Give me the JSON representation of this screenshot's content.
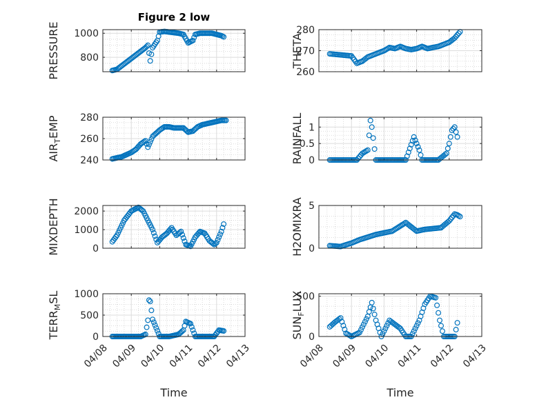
{
  "figure": {
    "title": "Figure 2 low",
    "marker_color": "#0072BD"
  },
  "chart_data": [
    {
      "type": "scatter",
      "title": "Figure 2 low",
      "ylabel": "PRESSURE",
      "ylabel_parts": [
        "PRESSURE"
      ],
      "xlim": [
        "04/08",
        "04/13"
      ],
      "ylim": [
        680,
        1030
      ],
      "yticks": [
        800,
        1000
      ],
      "xtick_labels_shown": false,
      "x": [
        "04/08 08:00",
        "04/08 12:00",
        "04/08 16:00",
        "04/08 20:00",
        "04/09 00:00",
        "04/09 04:00",
        "04/09 08:00",
        "04/09 12:00",
        "04/09 14:00",
        "04/09 16:00",
        "04/09 18:00",
        "04/09 22:00",
        "04/10 00:00",
        "04/10 04:00",
        "04/10 08:00",
        "04/10 12:00",
        "04/10 16:00",
        "04/10 20:00",
        "04/11 00:00",
        "04/11 04:00",
        "04/11 06:00",
        "04/11 10:00",
        "04/11 14:00",
        "04/11 20:00",
        "04/12 00:00",
        "04/12 04:00",
        "04/12 06:00"
      ],
      "values": [
        690,
        700,
        730,
        760,
        790,
        820,
        850,
        880,
        900,
        770,
        880,
        940,
        1010,
        1015,
        1010,
        1005,
        1000,
        990,
        920,
        940,
        990,
        1000,
        1000,
        1000,
        990,
        980,
        970
      ]
    },
    {
      "type": "scatter",
      "title": "",
      "ylabel": "THETA",
      "ylabel_parts": [
        "THETA"
      ],
      "xlim": [
        "04/08",
        "04/13"
      ],
      "ylim": [
        260,
        280
      ],
      "yticks": [
        260,
        270,
        280
      ],
      "xtick_labels_shown": false,
      "x": [
        "04/08 08:00",
        "04/08 16:00",
        "04/09 00:00",
        "04/09 04:00",
        "04/09 08:00",
        "04/09 12:00",
        "04/09 16:00",
        "04/10 00:00",
        "04/10 04:00",
        "04/10 08:00",
        "04/10 12:00",
        "04/10 16:00",
        "04/10 20:00",
        "04/11 00:00",
        "04/11 04:00",
        "04/11 08:00",
        "04/11 12:00",
        "04/11 16:00",
        "04/11 20:00",
        "04/12 00:00",
        "04/12 04:00",
        "04/12 08:00"
      ],
      "values": [
        268.5,
        268,
        267.5,
        264,
        265,
        267,
        268,
        270,
        271.5,
        271,
        272,
        271,
        270.5,
        271,
        272,
        271,
        271.5,
        272,
        273,
        274,
        276,
        279
      ]
    },
    {
      "type": "scatter",
      "title": "",
      "ylabel": "AIR_TEMP",
      "ylabel_parts": [
        "AIR",
        "T",
        "EMP"
      ],
      "xlim": [
        "04/08",
        "04/13"
      ],
      "ylim": [
        240,
        280
      ],
      "yticks": [
        240,
        260,
        280
      ],
      "xtick_labels_shown": false,
      "x": [
        "04/08 08:00",
        "04/08 16:00",
        "04/09 00:00",
        "04/09 04:00",
        "04/09 08:00",
        "04/09 12:00",
        "04/09 14:00",
        "04/09 18:00",
        "04/10 00:00",
        "04/10 04:00",
        "04/10 08:00",
        "04/10 12:00",
        "04/10 16:00",
        "04/10 20:00",
        "04/11 00:00",
        "04/11 04:00",
        "04/11 08:00",
        "04/11 12:00",
        "04/11 16:00",
        "04/11 20:00",
        "04/12 00:00",
        "04/12 04:00",
        "04/12 08:00"
      ],
      "values": [
        241,
        243,
        247,
        250,
        255,
        258,
        252,
        262,
        268,
        271,
        271,
        270,
        270,
        270,
        266,
        267,
        271,
        273,
        274,
        275,
        276,
        277,
        277
      ]
    },
    {
      "type": "scatter",
      "title": "",
      "ylabel": "RAINFALL",
      "ylabel_parts": [
        "RAINFALL"
      ],
      "xlim": [
        "04/08",
        "04/13"
      ],
      "ylim": [
        0,
        1.3
      ],
      "yticks": [
        0,
        0.5,
        1
      ],
      "xtick_labels_shown": false,
      "x": [
        "04/08 08:00",
        "04/08 16:00",
        "04/09 00:00",
        "04/09 04:00",
        "04/09 08:00",
        "04/09 12:00",
        "04/09 14:00",
        "04/09 15:00",
        "04/09 18:00",
        "04/10 00:00",
        "04/10 08:00",
        "04/10 16:00",
        "04/10 22:00",
        "04/11 00:00",
        "04/11 02:00",
        "04/11 04:00",
        "04/11 08:00",
        "04/11 16:00",
        "04/11 22:00",
        "04/12 00:00",
        "04/12 02:00",
        "04/12 04:00",
        "04/12 06:00"
      ],
      "values": [
        0,
        0,
        0,
        0,
        0.2,
        0.3,
        1.2,
        1.0,
        0,
        0,
        0,
        0,
        0.7,
        0.5,
        0.3,
        0,
        0,
        0,
        0.2,
        0.5,
        0.9,
        1.0,
        0.7
      ]
    },
    {
      "type": "scatter",
      "title": "",
      "ylabel": "MIXDEPTH",
      "ylabel_parts": [
        "MIXDEPTH"
      ],
      "xlim": [
        "04/08",
        "04/13"
      ],
      "ylim": [
        0,
        2300
      ],
      "yticks": [
        0,
        1000,
        2000
      ],
      "xtick_labels_shown": false,
      "x": [
        "04/08 08:00",
        "04/08 12:00",
        "04/08 18:00",
        "04/09 00:00",
        "04/09 06:00",
        "04/09 10:00",
        "04/09 14:00",
        "04/09 18:00",
        "04/09 22:00",
        "04/10 02:00",
        "04/10 06:00",
        "04/10 10:00",
        "04/10 14:00",
        "04/10 18:00",
        "04/10 22:00",
        "04/11 02:00",
        "04/11 06:00",
        "04/11 10:00",
        "04/11 14:00",
        "04/11 18:00",
        "04/11 22:00",
        "04/12 00:00",
        "04/12 04:00",
        "04/12 06:00"
      ],
      "values": [
        350,
        700,
        1500,
        2000,
        2200,
        2000,
        1500,
        1000,
        300,
        600,
        800,
        1100,
        700,
        900,
        200,
        100,
        600,
        900,
        800,
        400,
        200,
        300,
        900,
        1300
      ]
    },
    {
      "type": "scatter",
      "title": "",
      "ylabel": "H2OMIXRA",
      "ylabel_parts": [
        "H2OMIXRA"
      ],
      "xlim": [
        "04/08",
        "04/13"
      ],
      "ylim": [
        0,
        5
      ],
      "yticks": [
        0,
        5
      ],
      "xtick_labels_shown": false,
      "x": [
        "04/08 08:00",
        "04/08 16:00",
        "04/09 00:00",
        "04/09 06:00",
        "04/09 12:00",
        "04/09 18:00",
        "04/10 00:00",
        "04/10 06:00",
        "04/10 12:00",
        "04/10 16:00",
        "04/10 20:00",
        "04/11 00:00",
        "04/11 06:00",
        "04/11 12:00",
        "04/11 18:00",
        "04/12 00:00",
        "04/12 04:00",
        "04/12 06:00",
        "04/12 08:00"
      ],
      "values": [
        0.3,
        0.2,
        0.6,
        1.0,
        1.3,
        1.6,
        1.8,
        2.0,
        2.6,
        3.0,
        2.5,
        2.0,
        2.2,
        2.3,
        2.4,
        3.2,
        4.0,
        3.9,
        3.7
      ]
    },
    {
      "type": "scatter",
      "title": "",
      "ylabel": "TERR_MSL",
      "ylabel_parts": [
        "TERR",
        "M",
        "SL"
      ],
      "xlim": [
        "04/08",
        "04/13"
      ],
      "ylim": [
        0,
        1000
      ],
      "yticks": [
        0,
        500,
        1000
      ],
      "xtick_labels": [
        "04/08",
        "04/09",
        "04/10",
        "04/11",
        "04/12",
        "04/13"
      ],
      "xlabel": "Time",
      "x": [
        "04/08 08:00",
        "04/08 16:00",
        "04/09 00:00",
        "04/09 08:00",
        "04/09 12:00",
        "04/09 14:00",
        "04/09 15:00",
        "04/09 16:00",
        "04/09 18:00",
        "04/10 00:00",
        "04/10 08:00",
        "04/10 16:00",
        "04/10 20:00",
        "04/10 22:00",
        "04/11 02:00",
        "04/11 06:00",
        "04/11 12:00",
        "04/11 18:00",
        "04/11 22:00",
        "04/12 02:00",
        "04/12 06:00"
      ],
      "values": [
        0,
        0,
        0,
        0,
        50,
        380,
        850,
        820,
        400,
        0,
        0,
        50,
        150,
        350,
        300,
        0,
        0,
        0,
        0,
        150,
        130
      ]
    },
    {
      "type": "scatter",
      "title": "",
      "ylabel": "SUN_FLUX",
      "ylabel_parts": [
        "SUN",
        "F",
        "LUX"
      ],
      "xlim": [
        "04/08",
        "04/13"
      ],
      "ylim": [
        0,
        530
      ],
      "yticks": [
        0,
        500
      ],
      "xtick_labels": [
        "04/08",
        "04/09",
        "04/10",
        "04/11",
        "04/12",
        "04/13"
      ],
      "xlabel": "Time",
      "x": [
        "04/08 08:00",
        "04/08 12:00",
        "04/08 16:00",
        "04/08 20:00",
        "04/09 00:00",
        "04/09 06:00",
        "04/09 12:00",
        "04/09 15:00",
        "04/09 18:00",
        "04/09 22:00",
        "04/10 04:00",
        "04/10 08:00",
        "04/10 12:00",
        "04/10 16:00",
        "04/10 20:00",
        "04/11 02:00",
        "04/11 06:00",
        "04/11 10:00",
        "04/11 14:00",
        "04/11 17:00",
        "04/11 20:00",
        "04/12 00:00",
        "04/12 04:00",
        "04/12 06:00"
      ],
      "values": [
        120,
        180,
        230,
        40,
        0,
        50,
        250,
        420,
        200,
        0,
        200,
        150,
        100,
        0,
        0,
        200,
        400,
        500,
        480,
        200,
        0,
        0,
        0,
        170
      ]
    }
  ]
}
